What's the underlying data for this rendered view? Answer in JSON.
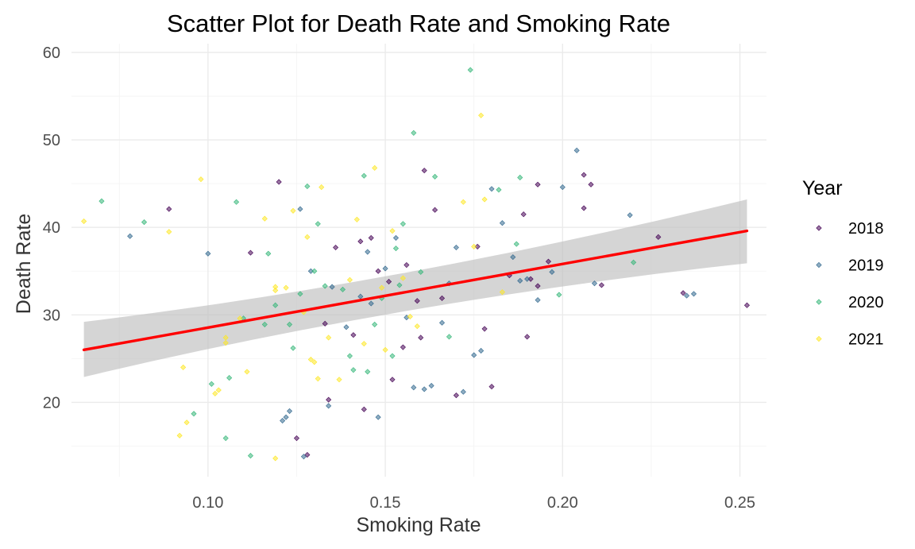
{
  "chart_data": {
    "type": "scatter",
    "title": "Scatter Plot for Death Rate and Smoking Rate",
    "xlabel": "Smoking Rate",
    "ylabel": "Death Rate",
    "xlim": [
      0.0615,
      0.2575
    ],
    "ylim": [
      11.5,
      61.0
    ],
    "x_ticks": [
      0.1,
      0.15,
      0.2,
      0.25
    ],
    "x_tick_labels": [
      "0.10",
      "0.15",
      "0.20",
      "0.25"
    ],
    "y_ticks": [
      20,
      30,
      40,
      50,
      60
    ],
    "y_tick_labels": [
      "20",
      "30",
      "40",
      "50",
      "60"
    ],
    "grid": true,
    "legend": {
      "title": "Year",
      "position": "right"
    },
    "regression": {
      "color": "#ff0000",
      "x": [
        0.065,
        0.252
      ],
      "y": [
        26.0,
        39.6
      ],
      "ci_lower": [
        22.9,
        35.9
      ],
      "ci_upper": [
        29.2,
        43.2
      ],
      "ci_center": [
        0.155,
        32.6
      ],
      "ci_center_half_width": 1.0,
      "ci_color": "#bebebe"
    },
    "series": [
      {
        "name": "2018",
        "color": "#440154",
        "points": [
          [
            0.089,
            42.1
          ],
          [
            0.112,
            37.1
          ],
          [
            0.12,
            45.2
          ],
          [
            0.136,
            37.7
          ],
          [
            0.143,
            38.4
          ],
          [
            0.146,
            38.8
          ],
          [
            0.148,
            35.0
          ],
          [
            0.151,
            33.8
          ],
          [
            0.156,
            35.7
          ],
          [
            0.159,
            31.6
          ],
          [
            0.161,
            46.5
          ],
          [
            0.164,
            42.0
          ],
          [
            0.176,
            37.8
          ],
          [
            0.178,
            28.4
          ],
          [
            0.18,
            21.8
          ],
          [
            0.189,
            41.5
          ],
          [
            0.191,
            34.1
          ],
          [
            0.193,
            44.9
          ],
          [
            0.196,
            36.1
          ],
          [
            0.206,
            46.0
          ],
          [
            0.208,
            44.9
          ],
          [
            0.211,
            33.4
          ],
          [
            0.19,
            27.5
          ],
          [
            0.17,
            20.8
          ],
          [
            0.155,
            26.3
          ],
          [
            0.152,
            22.6
          ],
          [
            0.144,
            19.2
          ],
          [
            0.134,
            20.3
          ],
          [
            0.125,
            15.9
          ],
          [
            0.128,
            14.0
          ],
          [
            0.227,
            38.9
          ],
          [
            0.234,
            32.5
          ],
          [
            0.252,
            31.1
          ],
          [
            0.133,
            29.0
          ],
          [
            0.141,
            27.7
          ],
          [
            0.16,
            27.4
          ],
          [
            0.166,
            31.9
          ],
          [
            0.185,
            34.5
          ],
          [
            0.206,
            42.2
          ],
          [
            0.193,
            33.3
          ]
        ]
      },
      {
        "name": "2019",
        "color": "#31688e",
        "points": [
          [
            0.078,
            39.0
          ],
          [
            0.1,
            37.0
          ],
          [
            0.122,
            18.3
          ],
          [
            0.121,
            17.9
          ],
          [
            0.123,
            19.0
          ],
          [
            0.126,
            42.1
          ],
          [
            0.129,
            35.0
          ],
          [
            0.134,
            19.6
          ],
          [
            0.135,
            33.2
          ],
          [
            0.139,
            28.6
          ],
          [
            0.143,
            32.1
          ],
          [
            0.145,
            37.2
          ],
          [
            0.148,
            18.3
          ],
          [
            0.15,
            35.3
          ],
          [
            0.153,
            38.8
          ],
          [
            0.156,
            29.7
          ],
          [
            0.158,
            21.7
          ],
          [
            0.161,
            21.5
          ],
          [
            0.163,
            21.9
          ],
          [
            0.166,
            29.1
          ],
          [
            0.17,
            37.7
          ],
          [
            0.172,
            21.2
          ],
          [
            0.175,
            25.4
          ],
          [
            0.177,
            25.9
          ],
          [
            0.18,
            44.4
          ],
          [
            0.183,
            40.5
          ],
          [
            0.186,
            36.6
          ],
          [
            0.188,
            33.9
          ],
          [
            0.19,
            34.1
          ],
          [
            0.193,
            31.7
          ],
          [
            0.2,
            44.6
          ],
          [
            0.204,
            48.8
          ],
          [
            0.209,
            33.6
          ],
          [
            0.219,
            41.4
          ],
          [
            0.235,
            32.2
          ],
          [
            0.237,
            32.4
          ],
          [
            0.127,
            13.8
          ],
          [
            0.146,
            31.3
          ],
          [
            0.168,
            33.6
          ],
          [
            0.197,
            34.9
          ]
        ]
      },
      {
        "name": "2020",
        "color": "#35b779",
        "points": [
          [
            0.07,
            43.0
          ],
          [
            0.082,
            40.6
          ],
          [
            0.096,
            18.7
          ],
          [
            0.101,
            22.1
          ],
          [
            0.105,
            15.9
          ],
          [
            0.106,
            22.8
          ],
          [
            0.108,
            42.9
          ],
          [
            0.11,
            29.6
          ],
          [
            0.112,
            13.9
          ],
          [
            0.116,
            28.9
          ],
          [
            0.117,
            37.0
          ],
          [
            0.119,
            31.1
          ],
          [
            0.123,
            28.9
          ],
          [
            0.124,
            26.2
          ],
          [
            0.126,
            32.4
          ],
          [
            0.128,
            44.7
          ],
          [
            0.13,
            35.0
          ],
          [
            0.133,
            33.3
          ],
          [
            0.138,
            32.9
          ],
          [
            0.14,
            25.3
          ],
          [
            0.141,
            23.7
          ],
          [
            0.144,
            45.9
          ],
          [
            0.145,
            23.5
          ],
          [
            0.147,
            28.9
          ],
          [
            0.149,
            31.9
          ],
          [
            0.152,
            25.3
          ],
          [
            0.154,
            33.4
          ],
          [
            0.155,
            40.4
          ],
          [
            0.158,
            50.8
          ],
          [
            0.16,
            34.9
          ],
          [
            0.164,
            45.8
          ],
          [
            0.168,
            27.5
          ],
          [
            0.174,
            58.0
          ],
          [
            0.182,
            44.3
          ],
          [
            0.187,
            38.1
          ],
          [
            0.188,
            45.7
          ],
          [
            0.199,
            32.3
          ],
          [
            0.22,
            36.0
          ],
          [
            0.131,
            40.4
          ],
          [
            0.153,
            37.6
          ]
        ]
      },
      {
        "name": "2021",
        "color": "#fde725",
        "points": [
          [
            0.065,
            40.7
          ],
          [
            0.089,
            39.5
          ],
          [
            0.092,
            16.2
          ],
          [
            0.093,
            24.0
          ],
          [
            0.094,
            17.7
          ],
          [
            0.098,
            45.5
          ],
          [
            0.102,
            21.0
          ],
          [
            0.103,
            21.4
          ],
          [
            0.105,
            27.4
          ],
          [
            0.105,
            26.8
          ],
          [
            0.109,
            29.6
          ],
          [
            0.111,
            23.5
          ],
          [
            0.116,
            41.0
          ],
          [
            0.119,
            32.8
          ],
          [
            0.119,
            33.2
          ],
          [
            0.119,
            13.6
          ],
          [
            0.122,
            33.1
          ],
          [
            0.124,
            41.9
          ],
          [
            0.127,
            30.3
          ],
          [
            0.128,
            38.9
          ],
          [
            0.129,
            24.9
          ],
          [
            0.13,
            24.6
          ],
          [
            0.131,
            22.7
          ],
          [
            0.132,
            44.6
          ],
          [
            0.134,
            27.4
          ],
          [
            0.137,
            22.6
          ],
          [
            0.14,
            34.0
          ],
          [
            0.142,
            40.9
          ],
          [
            0.144,
            26.7
          ],
          [
            0.147,
            46.8
          ],
          [
            0.149,
            33.1
          ],
          [
            0.15,
            26.0
          ],
          [
            0.152,
            39.6
          ],
          [
            0.155,
            34.2
          ],
          [
            0.157,
            29.8
          ],
          [
            0.159,
            28.7
          ],
          [
            0.172,
            42.9
          ],
          [
            0.175,
            37.8
          ],
          [
            0.177,
            52.8
          ],
          [
            0.178,
            43.2
          ],
          [
            0.183,
            32.6
          ]
        ]
      }
    ]
  }
}
